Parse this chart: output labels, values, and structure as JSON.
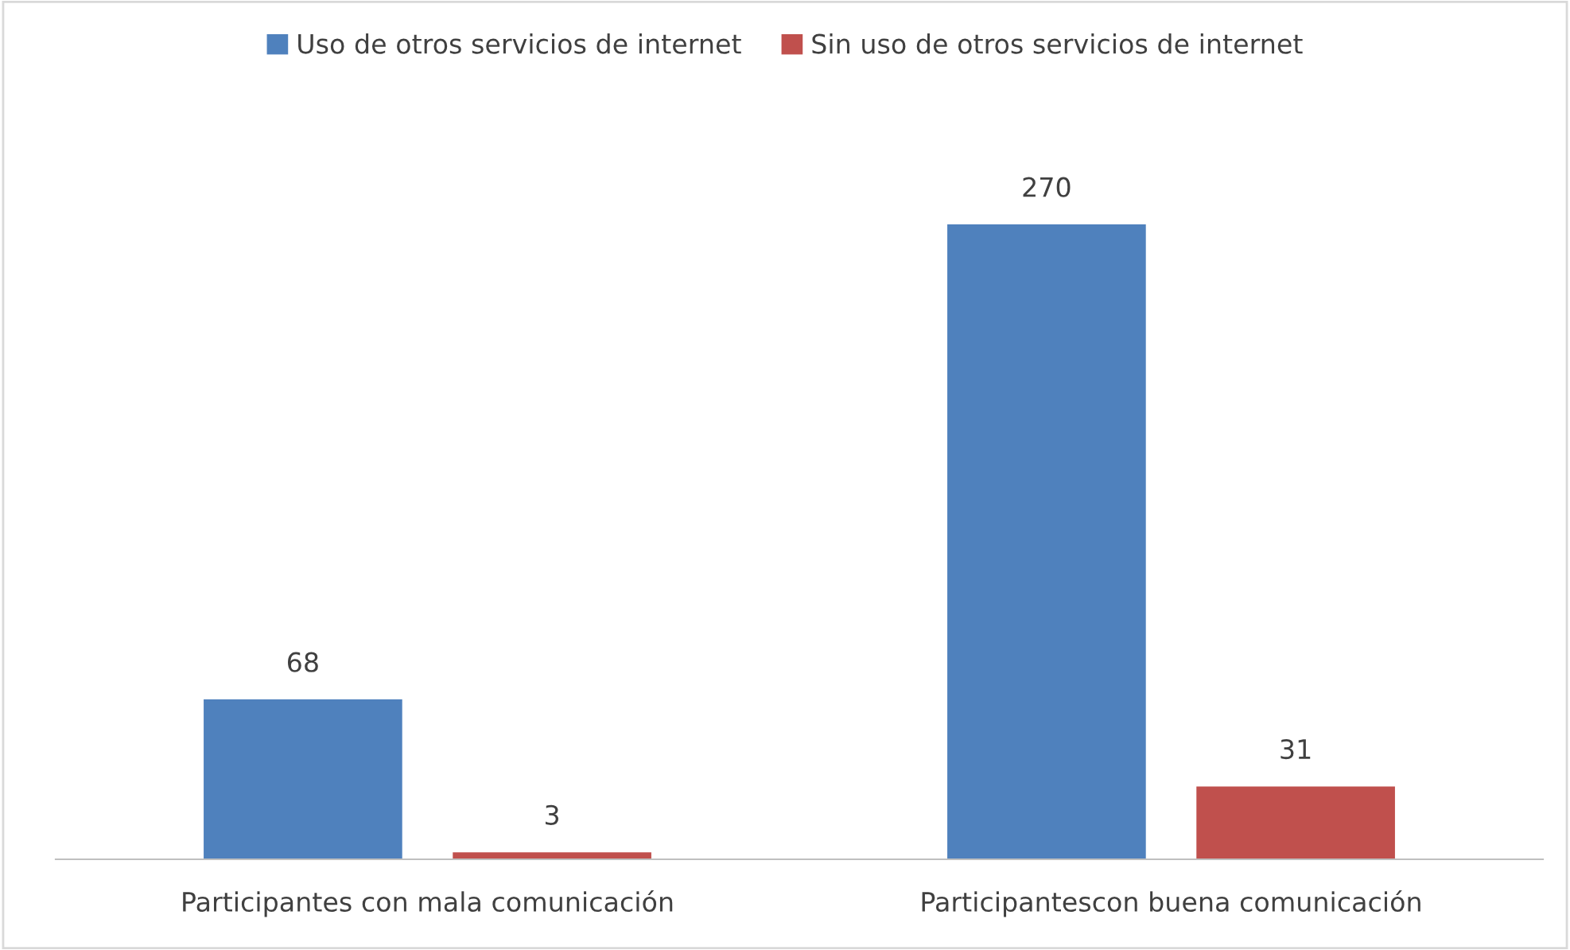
{
  "chart_data": {
    "type": "bar",
    "categories": [
      "Participantes con mala comunicación",
      "Participantescon buena comunicación"
    ],
    "series": [
      {
        "name": "Uso de otros servicios de internet",
        "color": "#4f81bd",
        "values": [
          68,
          270
        ]
      },
      {
        "name": "Sin uso de otros servicios de internet",
        "color": "#c0504d",
        "values": [
          3,
          31
        ]
      }
    ],
    "data_labels": true,
    "legend": "top",
    "grid": false
  }
}
